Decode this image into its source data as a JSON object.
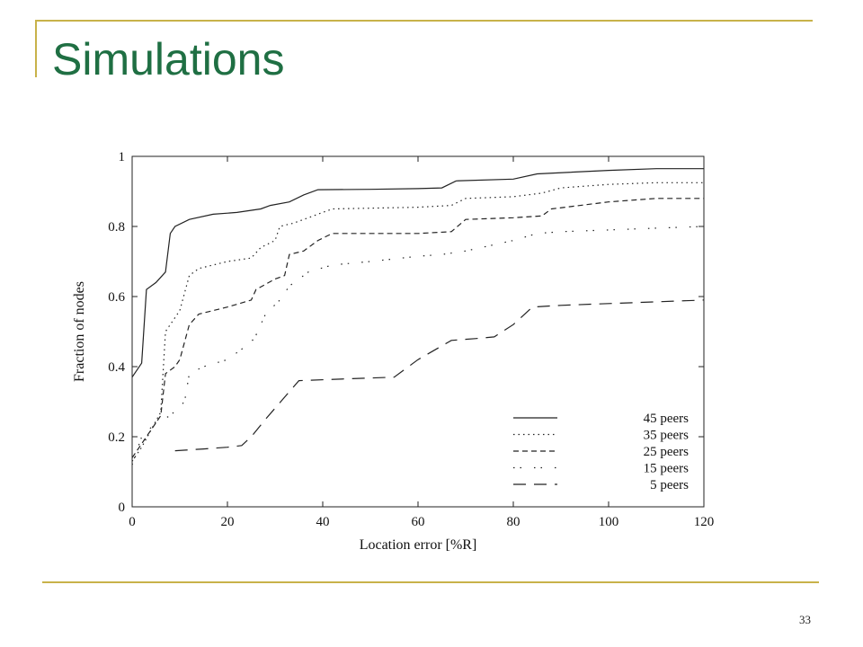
{
  "slide": {
    "title": "Simulations",
    "page_number": "33"
  },
  "colors": {
    "accent_rule": "#c8b24a",
    "title": "#1f6f43"
  },
  "chart_data": {
    "type": "line",
    "xlabel": "Location error [%R]",
    "ylabel": "Fraction of nodes",
    "xlim": [
      0,
      120
    ],
    "ylim": [
      0,
      1
    ],
    "xticks": [
      0,
      20,
      40,
      60,
      80,
      100,
      120
    ],
    "yticks": [
      0,
      0.2,
      0.4,
      0.6,
      0.8,
      1
    ],
    "ytick_labels": [
      "0",
      "0.2",
      "0.4",
      "0.6",
      "0.8",
      "1"
    ],
    "grid": false,
    "legend_position": "bottom-right",
    "series": [
      {
        "name": "45 peers",
        "dash": "solid",
        "points": [
          [
            0,
            0.37
          ],
          [
            2,
            0.41
          ],
          [
            3,
            0.62
          ],
          [
            5,
            0.64
          ],
          [
            7,
            0.67
          ],
          [
            8,
            0.78
          ],
          [
            9,
            0.8
          ],
          [
            12,
            0.82
          ],
          [
            17,
            0.835
          ],
          [
            22,
            0.84
          ],
          [
            27,
            0.85
          ],
          [
            29,
            0.86
          ],
          [
            33,
            0.87
          ],
          [
            36,
            0.89
          ],
          [
            39,
            0.905
          ],
          [
            50,
            0.906
          ],
          [
            60,
            0.908
          ],
          [
            65,
            0.91
          ],
          [
            68,
            0.93
          ],
          [
            80,
            0.935
          ],
          [
            85,
            0.95
          ],
          [
            100,
            0.96
          ],
          [
            110,
            0.965
          ],
          [
            120,
            0.965
          ]
        ]
      },
      {
        "name": "35 peers",
        "dash": "dotted",
        "points": [
          [
            0,
            0.13
          ],
          [
            2,
            0.17
          ],
          [
            4,
            0.22
          ],
          [
            6,
            0.27
          ],
          [
            7,
            0.5
          ],
          [
            9,
            0.54
          ],
          [
            10,
            0.56
          ],
          [
            12,
            0.66
          ],
          [
            14,
            0.68
          ],
          [
            20,
            0.7
          ],
          [
            25,
            0.71
          ],
          [
            27,
            0.74
          ],
          [
            30,
            0.76
          ],
          [
            31,
            0.8
          ],
          [
            34,
            0.81
          ],
          [
            38,
            0.83
          ],
          [
            42,
            0.85
          ],
          [
            60,
            0.855
          ],
          [
            67,
            0.86
          ],
          [
            70,
            0.88
          ],
          [
            80,
            0.885
          ],
          [
            86,
            0.895
          ],
          [
            90,
            0.91
          ],
          [
            100,
            0.92
          ],
          [
            110,
            0.925
          ],
          [
            120,
            0.925
          ]
        ]
      },
      {
        "name": "25 peers",
        "dash": "dashed",
        "points": [
          [
            0,
            0.14
          ],
          [
            2,
            0.18
          ],
          [
            5,
            0.24
          ],
          [
            6,
            0.26
          ],
          [
            7,
            0.38
          ],
          [
            9,
            0.4
          ],
          [
            10,
            0.42
          ],
          [
            12,
            0.52
          ],
          [
            14,
            0.55
          ],
          [
            20,
            0.57
          ],
          [
            25,
            0.59
          ],
          [
            26,
            0.62
          ],
          [
            30,
            0.65
          ],
          [
            32,
            0.66
          ],
          [
            33,
            0.72
          ],
          [
            36,
            0.73
          ],
          [
            39,
            0.76
          ],
          [
            42,
            0.78
          ],
          [
            60,
            0.78
          ],
          [
            67,
            0.785
          ],
          [
            70,
            0.82
          ],
          [
            80,
            0.825
          ],
          [
            86,
            0.83
          ],
          [
            88,
            0.85
          ],
          [
            100,
            0.87
          ],
          [
            110,
            0.88
          ],
          [
            120,
            0.88
          ]
        ]
      },
      {
        "name": "15 peers",
        "dash": "dashdot",
        "points": [
          [
            0,
            0.12
          ],
          [
            2,
            0.2
          ],
          [
            5,
            0.24
          ],
          [
            8,
            0.26
          ],
          [
            11,
            0.3
          ],
          [
            12,
            0.38
          ],
          [
            15,
            0.4
          ],
          [
            20,
            0.42
          ],
          [
            25,
            0.47
          ],
          [
            26,
            0.49
          ],
          [
            28,
            0.55
          ],
          [
            31,
            0.59
          ],
          [
            33,
            0.63
          ],
          [
            37,
            0.67
          ],
          [
            42,
            0.69
          ],
          [
            50,
            0.7
          ],
          [
            60,
            0.715
          ],
          [
            65,
            0.72
          ],
          [
            70,
            0.73
          ],
          [
            80,
            0.76
          ],
          [
            85,
            0.78
          ],
          [
            90,
            0.785
          ],
          [
            100,
            0.79
          ],
          [
            110,
            0.795
          ],
          [
            120,
            0.8
          ]
        ]
      },
      {
        "name": "5 peers",
        "dash": "longdash",
        "points": [
          [
            9,
            0.16
          ],
          [
            15,
            0.165
          ],
          [
            20,
            0.17
          ],
          [
            23,
            0.175
          ],
          [
            25,
            0.2
          ],
          [
            28,
            0.25
          ],
          [
            35,
            0.36
          ],
          [
            45,
            0.365
          ],
          [
            55,
            0.37
          ],
          [
            60,
            0.42
          ],
          [
            67,
            0.475
          ],
          [
            72,
            0.48
          ],
          [
            76,
            0.485
          ],
          [
            80,
            0.52
          ],
          [
            84,
            0.57
          ],
          [
            90,
            0.575
          ],
          [
            100,
            0.58
          ],
          [
            110,
            0.585
          ],
          [
            120,
            0.59
          ]
        ]
      }
    ]
  }
}
